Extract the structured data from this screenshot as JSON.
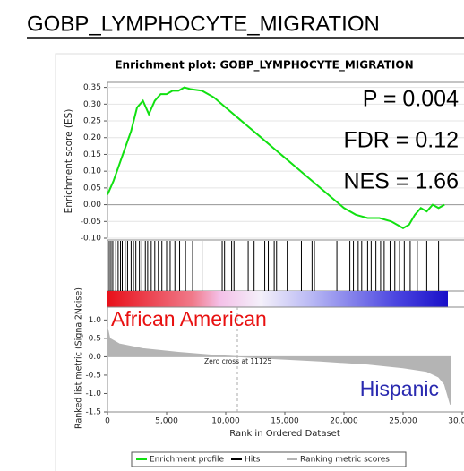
{
  "header": {
    "title": "GOBP_LYMPHOCYTE_MIGRATION"
  },
  "chart_data": [
    {
      "type": "line",
      "title": "Enrichment plot: GOBP_LYMPHOCYTE_MIGRATION",
      "ylabel": "Enrichment score (ES)",
      "annotations": [
        "P = 0.004",
        "FDR = 0.12",
        "NES = 1.66"
      ],
      "x": [
        0,
        500,
        1000,
        1500,
        2000,
        2500,
        3000,
        3500,
        4000,
        4500,
        5000,
        5500,
        6000,
        6500,
        7000,
        8000,
        9000,
        10000,
        11000,
        12000,
        13000,
        14000,
        15000,
        16000,
        17000,
        18000,
        19000,
        20000,
        21000,
        22000,
        23000,
        24000,
        25000,
        25500,
        26000,
        26500,
        27000,
        27500,
        28000,
        28500
      ],
      "series": [
        {
          "name": "Enrichment profile",
          "color": "#11e011",
          "values": [
            0.03,
            0.07,
            0.12,
            0.17,
            0.22,
            0.29,
            0.31,
            0.27,
            0.31,
            0.33,
            0.33,
            0.34,
            0.34,
            0.35,
            0.345,
            0.34,
            0.32,
            0.29,
            0.26,
            0.23,
            0.2,
            0.17,
            0.14,
            0.11,
            0.08,
            0.05,
            0.02,
            -0.01,
            -0.03,
            -0.04,
            -0.04,
            -0.05,
            -0.07,
            -0.06,
            -0.03,
            -0.01,
            -0.02,
            0.0,
            -0.01,
            0.0
          ]
        }
      ],
      "xlim": [
        0,
        30000
      ],
      "ylim": [
        -0.1,
        0.365
      ],
      "yticks": [
        {
          "value": 0.35,
          "label": "0.35"
        },
        {
          "value": 0.3,
          "label": "0.30"
        },
        {
          "value": 0.25,
          "label": "0.25"
        },
        {
          "value": 0.2,
          "label": "0.20"
        },
        {
          "value": 0.15,
          "label": "0.15"
        },
        {
          "value": 0.1,
          "label": "0.10"
        },
        {
          "value": 0.05,
          "label": "0.05"
        },
        {
          "value": 0,
          "label": "0.00"
        },
        {
          "value": -0.05,
          "label": "-0.05"
        },
        {
          "value": -0.1,
          "label": "-0.10"
        }
      ],
      "grid": true
    },
    {
      "type": "rug",
      "xlim": [
        0,
        30000
      ],
      "series": [
        {
          "name": "Hits",
          "color": "#000000",
          "x": [
            150,
            300,
            450,
            700,
            900,
            1100,
            1250,
            1500,
            1700,
            2000,
            2200,
            2400,
            2700,
            2900,
            3200,
            3400,
            3700,
            4000,
            4300,
            4600,
            5000,
            5300,
            5700,
            6100,
            6600,
            7200,
            8000,
            9700,
            9900,
            10500,
            10700,
            11900,
            12400,
            13300,
            13600,
            14100,
            14300,
            15200,
            16400,
            17300,
            17500,
            19400,
            20500,
            20800,
            21200,
            21500,
            22000,
            22300,
            22700,
            23100,
            23400,
            23900,
            24300,
            24700,
            25100,
            25600,
            26200,
            27000,
            28000
          ]
        }
      ]
    },
    {
      "type": "area",
      "ylabel": "Ranked list metric (Signal2Noise)",
      "xlabel": "Rank in Ordered Dataset",
      "annotations": [
        "African American",
        "Hispanic"
      ],
      "zero_cross_label": "Zero cross at 11125",
      "x": [
        0,
        200,
        1000,
        3000,
        6000,
        9000,
        11125,
        14000,
        18000,
        22000,
        25000,
        27000,
        28000,
        28500,
        29000
      ],
      "series": [
        {
          "name": "Ranking metric scores",
          "color": "#b4b4b4",
          "values": [
            0.8,
            0.5,
            0.35,
            0.22,
            0.12,
            0.04,
            0,
            -0.05,
            -0.12,
            -0.2,
            -0.3,
            -0.4,
            -0.55,
            -0.75,
            -1.3
          ]
        }
      ],
      "xlim": [
        0,
        30000
      ],
      "ylim": [
        -1.5,
        1.35
      ],
      "xticks": [
        0,
        {
          "value": 5000,
          "label": "5,000"
        },
        {
          "value": 10000,
          "label": "10,000"
        },
        {
          "value": 15000,
          "label": "15,000"
        },
        {
          "value": 20000,
          "label": "20,000"
        },
        {
          "value": 25000,
          "label": "25,000"
        },
        {
          "value": 30000,
          "label": "30,000"
        }
      ],
      "yticks": [
        {
          "value": 1,
          "label": "1.0"
        },
        {
          "value": 0.5,
          "label": "0.5"
        },
        {
          "value": 0,
          "label": "0.0"
        },
        {
          "value": -0.5,
          "label": "-0.5"
        },
        {
          "value": -1,
          "label": "-1.0"
        },
        {
          "value": -1.5,
          "label": "-1.5"
        }
      ]
    }
  ]
}
